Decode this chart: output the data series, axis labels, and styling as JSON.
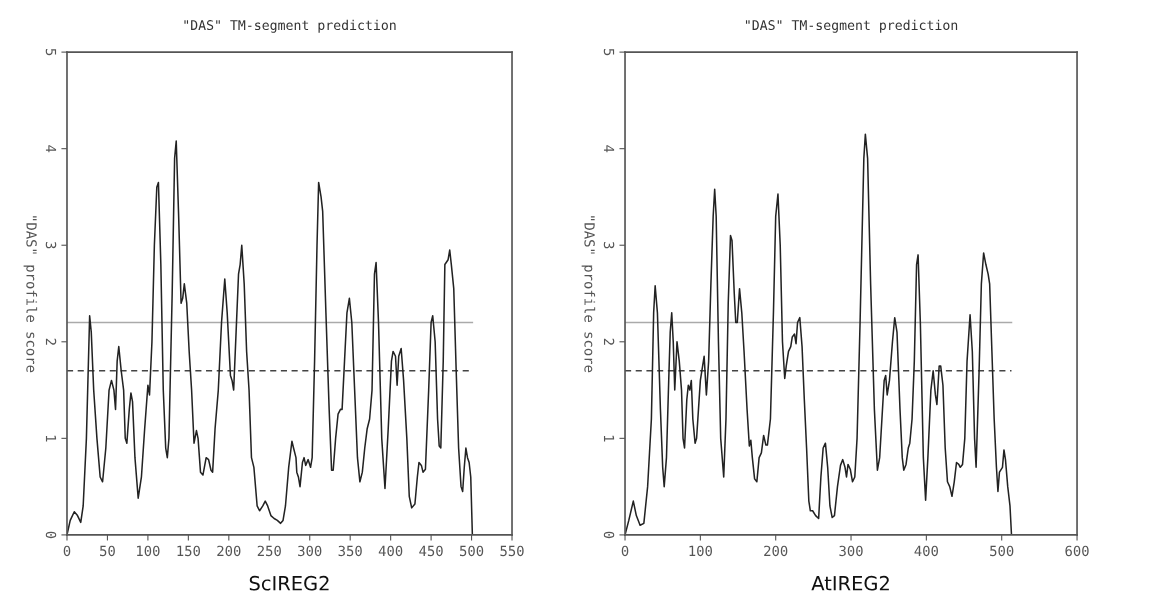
{
  "chart_data": [
    {
      "type": "line",
      "title": "\"DAS\" TM-segment prediction",
      "xlabel": "ScIREG2",
      "ylabel": "\"DAS\" profile score",
      "xlim": [
        0,
        550
      ],
      "xticks": [
        0,
        50,
        100,
        150,
        200,
        250,
        300,
        350,
        400,
        450,
        500,
        550
      ],
      "ylim": [
        0,
        5
      ],
      "yticks": [
        0,
        1,
        2,
        3,
        4,
        5
      ],
      "grid": false,
      "ref_lines": [
        {
          "axis": "y",
          "value": 2.2,
          "color": "#aaaaaa",
          "line_style": "solid"
        },
        {
          "axis": "y",
          "value": 1.7,
          "color": "#444444",
          "line_style": "dashed"
        }
      ],
      "series": [
        {
          "color": "#222222",
          "x": [
            0,
            4,
            9,
            13,
            17,
            20,
            24,
            28,
            30,
            33,
            37,
            41,
            44,
            48,
            52,
            55,
            58,
            60,
            62,
            64,
            67,
            70,
            72,
            74,
            77,
            79,
            81,
            84,
            88,
            92,
            96,
            100,
            102,
            105,
            108,
            111,
            113,
            116,
            119,
            122,
            124,
            126,
            130,
            133,
            135,
            138,
            141,
            143,
            145,
            148,
            151,
            154,
            157,
            160,
            162,
            165,
            168,
            172,
            175,
            178,
            180,
            183,
            187,
            191,
            195,
            198,
            202,
            204,
            206,
            209,
            212,
            214,
            216,
            219,
            222,
            225,
            228,
            231,
            235,
            238,
            242,
            245,
            248,
            252,
            256,
            260,
            264,
            267,
            270,
            274,
            278,
            280,
            283,
            284,
            286,
            288,
            291,
            293,
            295,
            298,
            301,
            303,
            306,
            309,
            311,
            314,
            316,
            320,
            324,
            327,
            329,
            332,
            335,
            338,
            340,
            343,
            346,
            349,
            352,
            356,
            359,
            362,
            365,
            368,
            371,
            374,
            377,
            380,
            382,
            385,
            389,
            393,
            397,
            401,
            403,
            406,
            408,
            410,
            413,
            416,
            420,
            423,
            426,
            430,
            433,
            435,
            438,
            440,
            443,
            447,
            450,
            452,
            455,
            458,
            460,
            462,
            465,
            467,
            471,
            473,
            475,
            478,
            481,
            484,
            487,
            489,
            491,
            493,
            495,
            497,
            499,
            501
          ],
          "values": [
            0,
            0.15,
            0.24,
            0.2,
            0.13,
            0.3,
            1.0,
            2.27,
            2.1,
            1.5,
            1.0,
            0.6,
            0.55,
            0.9,
            1.5,
            1.6,
            1.5,
            1.3,
            1.8,
            1.95,
            1.7,
            1.5,
            1.0,
            0.95,
            1.3,
            1.47,
            1.38,
            0.8,
            0.38,
            0.6,
            1.1,
            1.55,
            1.45,
            2.0,
            3.0,
            3.6,
            3.65,
            2.8,
            1.5,
            0.9,
            0.8,
            1.0,
            2.5,
            3.9,
            4.08,
            3.3,
            2.4,
            2.45,
            2.6,
            2.4,
            1.9,
            1.5,
            0.95,
            1.08,
            1.0,
            0.65,
            0.62,
            0.8,
            0.78,
            0.67,
            0.65,
            1.1,
            1.5,
            2.2,
            2.65,
            2.3,
            1.65,
            1.6,
            1.5,
            2.1,
            2.7,
            2.8,
            3.0,
            2.6,
            1.9,
            1.5,
            0.8,
            0.7,
            0.3,
            0.25,
            0.3,
            0.35,
            0.3,
            0.2,
            0.17,
            0.15,
            0.12,
            0.15,
            0.3,
            0.7,
            0.97,
            0.9,
            0.8,
            0.65,
            0.6,
            0.5,
            0.75,
            0.8,
            0.72,
            0.78,
            0.7,
            0.8,
            1.8,
            3.0,
            3.65,
            3.5,
            3.35,
            2.3,
            1.3,
            0.67,
            0.67,
            1.0,
            1.25,
            1.3,
            1.3,
            1.8,
            2.3,
            2.45,
            2.2,
            1.4,
            0.8,
            0.55,
            0.65,
            0.9,
            1.1,
            1.2,
            1.5,
            2.7,
            2.82,
            2.2,
            1.0,
            0.48,
            1.1,
            1.8,
            1.9,
            1.85,
            1.55,
            1.85,
            1.93,
            1.6,
            1.0,
            0.4,
            0.28,
            0.32,
            0.6,
            0.75,
            0.72,
            0.65,
            0.68,
            1.5,
            2.2,
            2.27,
            2.0,
            1.2,
            0.92,
            0.9,
            1.8,
            2.8,
            2.85,
            2.95,
            2.8,
            2.55,
            1.7,
            0.9,
            0.5,
            0.45,
            0.7,
            0.9,
            0.8,
            0.75,
            0.6,
            0
          ]
        }
      ]
    },
    {
      "type": "line",
      "title": "\"DAS\" TM-segment prediction",
      "xlabel": "AtIREG2",
      "ylabel": "\"DAS\" profile score",
      "xlim": [
        0,
        600
      ],
      "xticks": [
        0,
        100,
        200,
        300,
        400,
        500,
        600
      ],
      "ylim": [
        0,
        5
      ],
      "yticks": [
        0,
        1,
        2,
        3,
        4,
        5
      ],
      "grid": false,
      "ref_lines": [
        {
          "axis": "y",
          "value": 2.2,
          "color": "#aaaaaa",
          "line_style": "solid"
        },
        {
          "axis": "y",
          "value": 1.7,
          "color": "#444444",
          "line_style": "dashed"
        }
      ],
      "series": [
        {
          "color": "#222222",
          "x": [
            0,
            5,
            11,
            15,
            20,
            25,
            30,
            35,
            38,
            40,
            43,
            47,
            50,
            52,
            55,
            58,
            60,
            62,
            64,
            66,
            69,
            72,
            75,
            77,
            79,
            82,
            84,
            86,
            88,
            90,
            93,
            95,
            100,
            105,
            108,
            111,
            114,
            117,
            119,
            121,
            124,
            127,
            131,
            134,
            137,
            140,
            142,
            145,
            147,
            149,
            152,
            155,
            158,
            162,
            165,
            167,
            169,
            172,
            175,
            178,
            181,
            184,
            187,
            189,
            193,
            197,
            200,
            203,
            206,
            209,
            212,
            214,
            217,
            220,
            222,
            225,
            227,
            229,
            232,
            235,
            238,
            241,
            244,
            246,
            249,
            253,
            257,
            260,
            263,
            266,
            269,
            272,
            275,
            278,
            282,
            286,
            289,
            292,
            294,
            296,
            299,
            302,
            305,
            308,
            312,
            317,
            319,
            322,
            326,
            331,
            335,
            338,
            341,
            344,
            346,
            348,
            351,
            355,
            358,
            361,
            365,
            368,
            370,
            373,
            376,
            378,
            381,
            384,
            387,
            389,
            392,
            396,
            399,
            402,
            406,
            409,
            412,
            414,
            417,
            419,
            422,
            425,
            428,
            431,
            434,
            437,
            440,
            443,
            445,
            448,
            451,
            454,
            458,
            461,
            464,
            466,
            470,
            473,
            476,
            479,
            482,
            484,
            487,
            490,
            493,
            495,
            497,
            501,
            503,
            505,
            508,
            511,
            513
          ],
          "values": [
            0,
            0.15,
            0.35,
            0.2,
            0.1,
            0.12,
            0.5,
            1.2,
            2.3,
            2.58,
            2.3,
            1.3,
            0.7,
            0.5,
            0.8,
            1.6,
            2.1,
            2.3,
            2.0,
            1.5,
            2.0,
            1.8,
            1.5,
            1.0,
            0.9,
            1.4,
            1.55,
            1.5,
            1.6,
            1.2,
            0.95,
            1.0,
            1.6,
            1.85,
            1.45,
            1.8,
            2.6,
            3.3,
            3.58,
            3.3,
            2.0,
            1.0,
            0.6,
            1.2,
            2.4,
            3.1,
            3.05,
            2.5,
            2.2,
            2.2,
            2.55,
            2.3,
            1.9,
            1.3,
            0.92,
            0.98,
            0.8,
            0.58,
            0.55,
            0.8,
            0.85,
            1.03,
            0.93,
            0.93,
            1.2,
            2.3,
            3.3,
            3.53,
            3.0,
            2.0,
            1.62,
            1.75,
            1.9,
            1.95,
            2.05,
            2.08,
            1.98,
            2.2,
            2.25,
            1.95,
            1.4,
            0.9,
            0.35,
            0.25,
            0.25,
            0.2,
            0.17,
            0.6,
            0.9,
            0.95,
            0.7,
            0.3,
            0.18,
            0.2,
            0.5,
            0.72,
            0.78,
            0.7,
            0.6,
            0.73,
            0.68,
            0.55,
            0.6,
            1.0,
            2.2,
            3.9,
            4.15,
            3.9,
            2.6,
            1.3,
            0.67,
            0.8,
            1.2,
            1.6,
            1.65,
            1.45,
            1.6,
            2.0,
            2.25,
            2.1,
            1.3,
            0.8,
            0.67,
            0.73,
            0.9,
            0.95,
            1.2,
            1.8,
            2.8,
            2.9,
            2.2,
            0.8,
            0.36,
            0.8,
            1.5,
            1.7,
            1.45,
            1.35,
            1.75,
            1.75,
            1.55,
            0.9,
            0.55,
            0.5,
            0.4,
            0.55,
            0.75,
            0.73,
            0.7,
            0.73,
            1.0,
            1.8,
            2.28,
            1.9,
            1.0,
            0.7,
            1.7,
            2.6,
            2.92,
            2.8,
            2.7,
            2.6,
            1.9,
            1.2,
            0.7,
            0.45,
            0.65,
            0.7,
            0.88,
            0.78,
            0.5,
            0.3,
            0
          ]
        }
      ]
    }
  ]
}
